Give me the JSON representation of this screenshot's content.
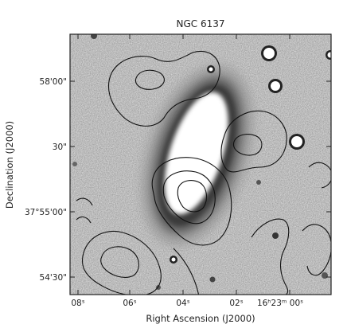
{
  "figure": {
    "title": "NGC 6137",
    "x_label": "Right Ascension (J2000)",
    "y_label": "Declination (J2000)",
    "x_ticks": [
      "08ˢ",
      "06ˢ",
      "04ˢ",
      "02ˢ",
      "16ʰ23ᵐ 00ˢ"
    ],
    "y_ticks": [
      "58'00\"",
      "30\"",
      "37°55'00\"",
      "54'30\""
    ]
  },
  "colors": {
    "background": "#d7d7d7",
    "contour": "#111111",
    "frame": "#222222",
    "galaxy_core": "#ffffff",
    "galaxy_halo": "#3a3a3a"
  }
}
